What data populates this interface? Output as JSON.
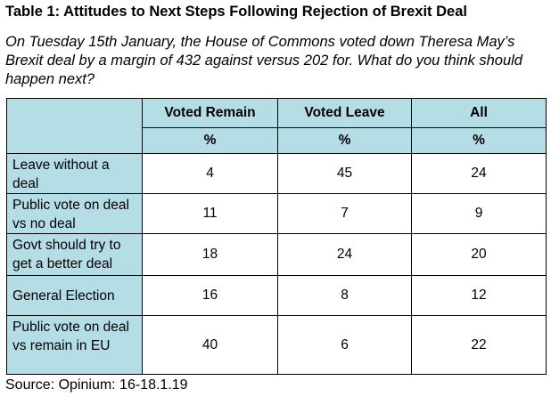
{
  "title": "Table 1: Attitudes to Next Steps Following Rejection of Brexit Deal",
  "question": "On Tuesday 15th January, the House of Commons voted down Theresa May’s Brexit deal by a margin of 432 against versus 202 for. What do you think should happen next?",
  "table": {
    "columns": [
      "Voted Remain",
      "Voted Leave",
      "All"
    ],
    "units": [
      "%",
      "%",
      "%"
    ],
    "rows": [
      {
        "label": "Leave without a deal",
        "values": [
          "4",
          "45",
          "24"
        ]
      },
      {
        "label": "Public vote on deal vs no deal",
        "values": [
          "11",
          "7",
          "9"
        ]
      },
      {
        "label": "Govt should try to get a better deal",
        "values": [
          "18",
          "24",
          "20"
        ]
      },
      {
        "label": "General Election",
        "values": [
          "16",
          "8",
          "12"
        ]
      },
      {
        "label": "Public vote on deal vs remain in EU",
        "values": [
          "40",
          "6",
          "22"
        ]
      }
    ]
  },
  "source": "Source: Opinium: 16-18.1.19",
  "colors": {
    "header_fill": "#b4dde6",
    "border": "#000000"
  }
}
